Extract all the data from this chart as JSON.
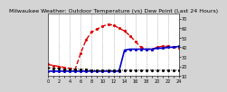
{
  "title": "Milwaukee Weather: Outdoor Temperature (vs) Dew Point (Last 24 Hours)",
  "bg_color": "#d4d4d4",
  "plot_bg_color": "#ffffff",
  "grid_color": "#888888",
  "xlim": [
    0,
    24
  ],
  "ylim": [
    10,
    75
  ],
  "yticks": [
    10,
    20,
    30,
    40,
    50,
    60,
    70
  ],
  "ytick_labels": [
    "10",
    "20",
    "30",
    "40",
    "50",
    "60",
    "70"
  ],
  "hours": [
    0,
    1,
    2,
    3,
    4,
    5,
    6,
    7,
    8,
    9,
    10,
    11,
    12,
    13,
    14,
    15,
    16,
    17,
    18,
    19,
    20,
    21,
    22,
    23,
    24
  ],
  "temp": [
    22,
    21,
    20,
    19,
    18,
    17,
    34,
    48,
    56,
    59,
    62,
    64,
    63,
    60,
    57,
    52,
    46,
    40,
    38,
    38,
    40,
    41,
    41,
    40,
    39
  ],
  "dew": [
    15,
    15,
    15,
    15,
    15,
    15,
    15,
    15,
    15,
    15,
    15,
    15,
    15,
    15,
    37,
    38,
    38,
    38,
    38,
    38,
    39,
    39,
    40,
    40,
    41
  ],
  "black_line": [
    19,
    18,
    18,
    17,
    17,
    17,
    17,
    17,
    16,
    16,
    16,
    16,
    16,
    16,
    16,
    16,
    16,
    16,
    16,
    16,
    16,
    16,
    16,
    16,
    16
  ],
  "temp_color": "#dd0000",
  "dew_color": "#0000cc",
  "black_color": "#000000",
  "temp_linestyle": "--",
  "dew_linestyle": "-",
  "black_linestyle": ":",
  "markersize": 2.5,
  "temp_lw": 1.0,
  "dew_lw": 1.2,
  "black_lw": 0.7,
  "title_fontsize": 4.5,
  "tick_fontsize": 3.5,
  "grid_every": 2
}
